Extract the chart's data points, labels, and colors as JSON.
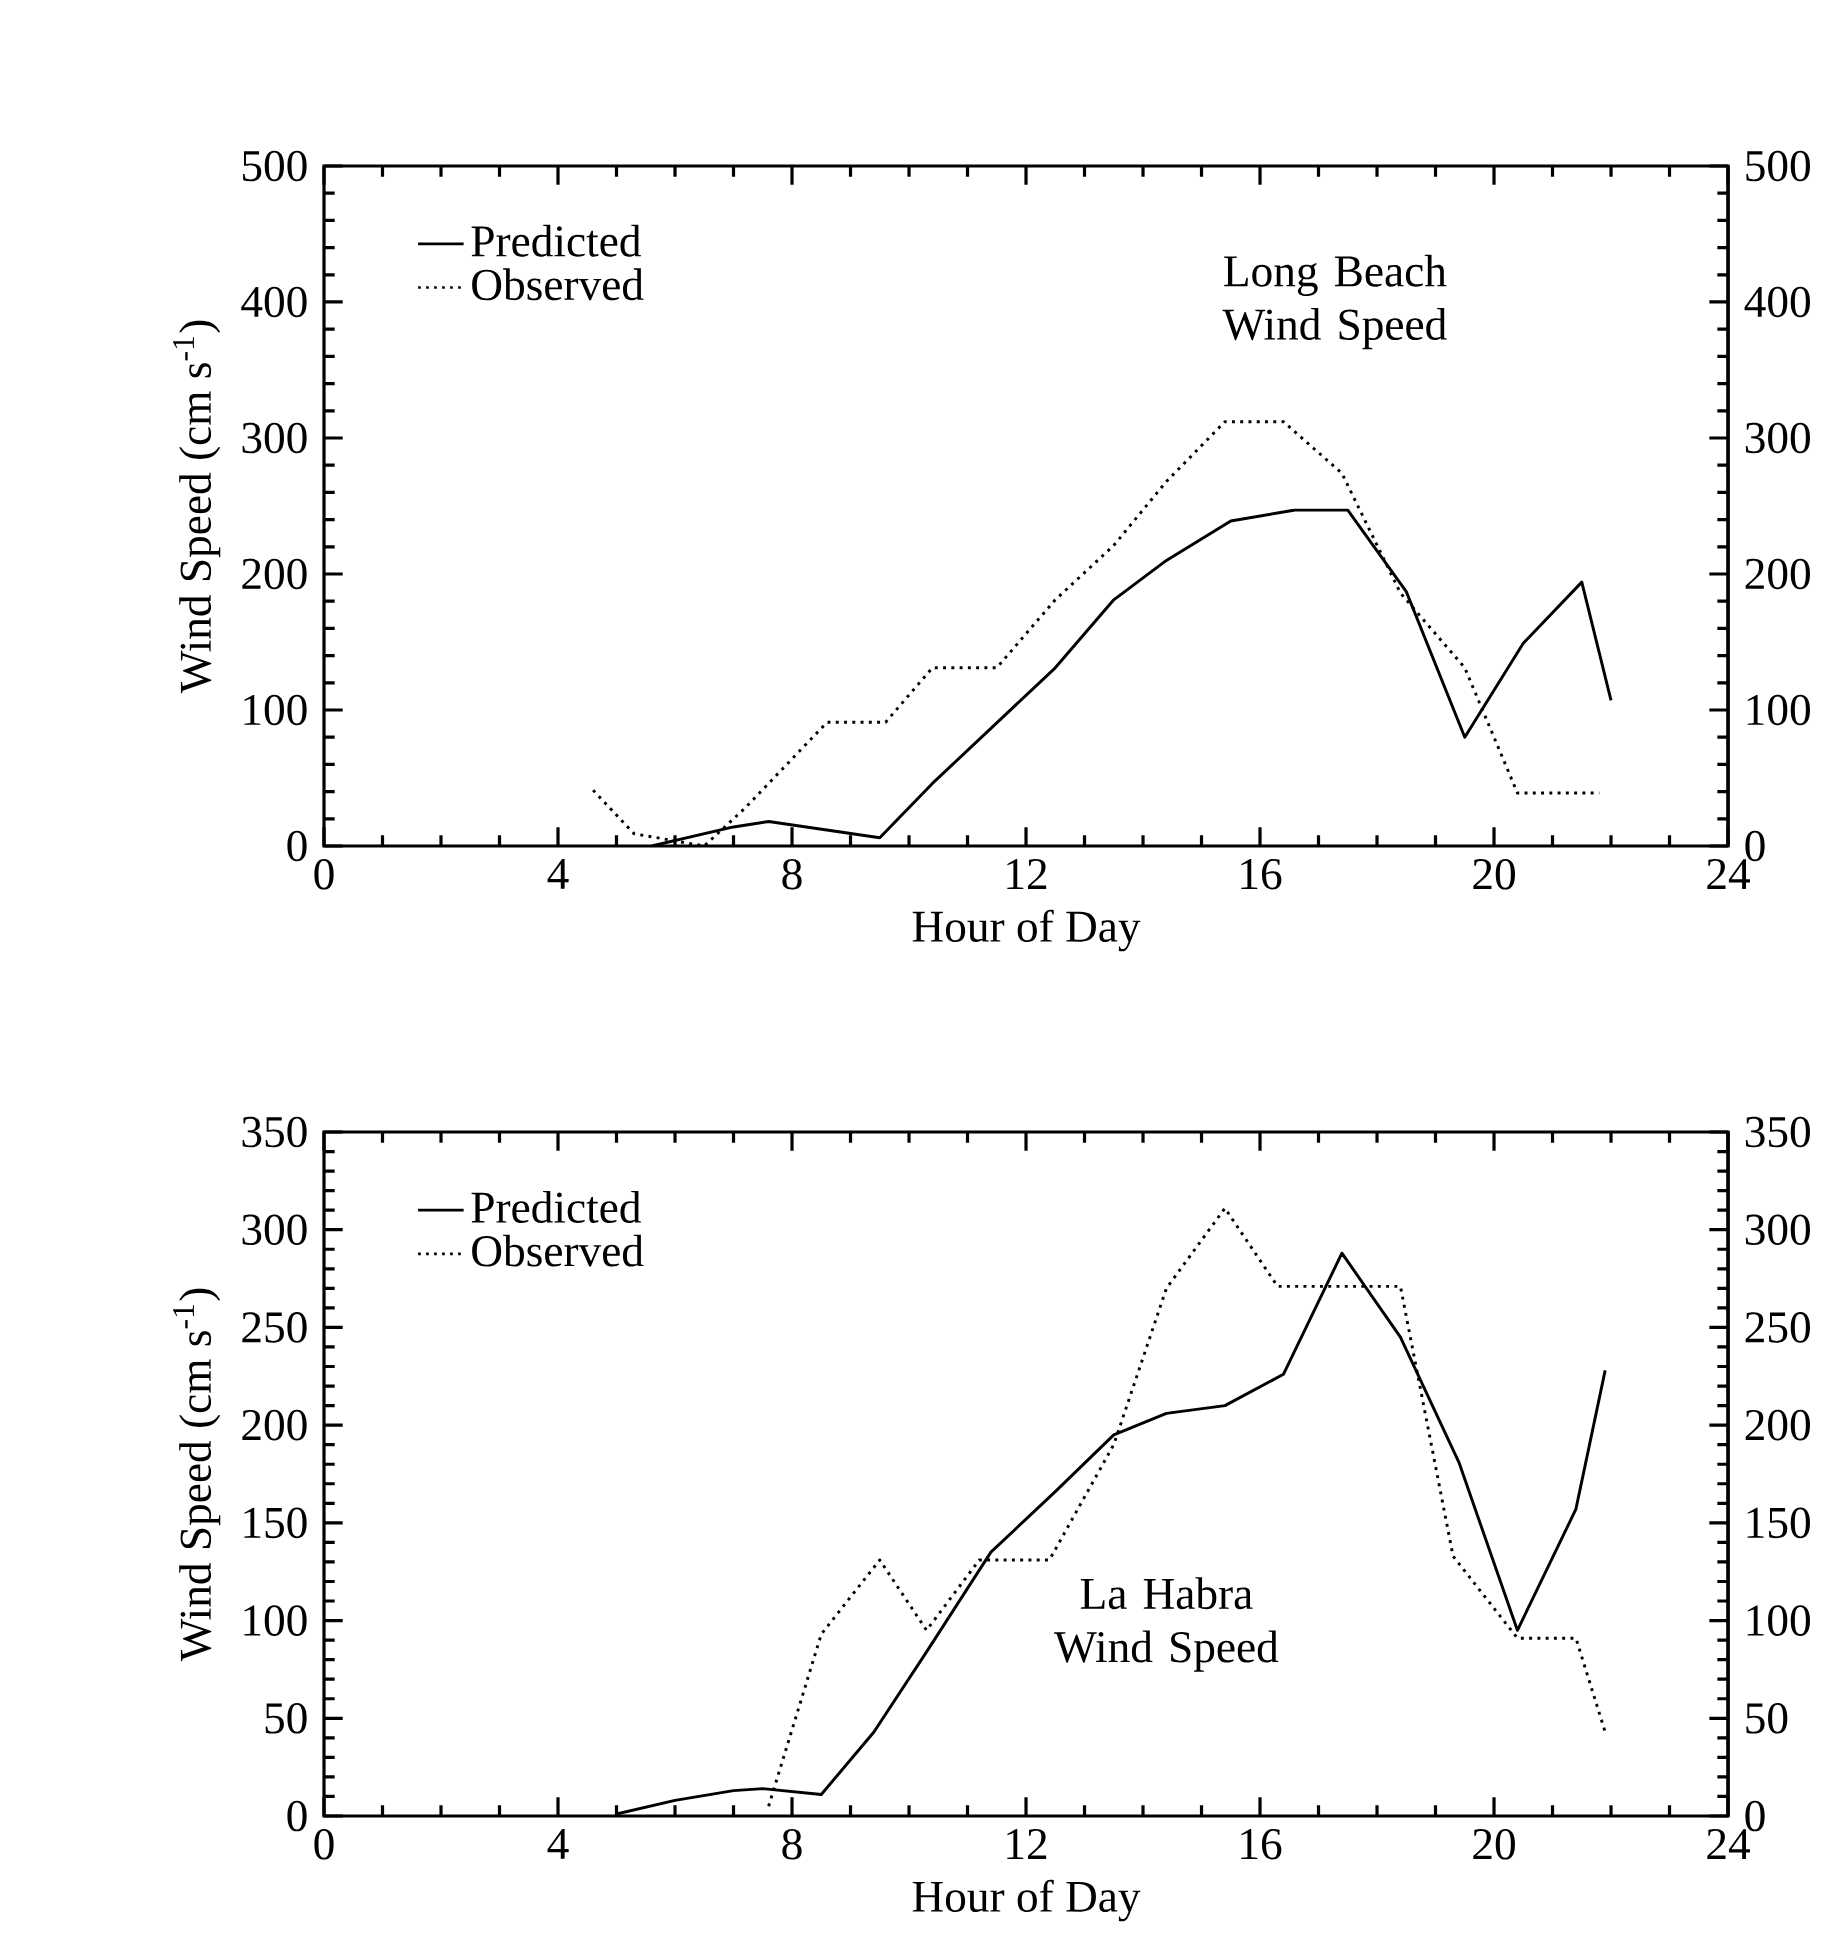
{
  "chart_data": [
    {
      "type": "line",
      "xlabel": "Hour of Day",
      "ylabel": "Wind Speed (cm s$^{-1}$)",
      "xlim": [
        0,
        24
      ],
      "xticks": [
        0,
        4,
        8,
        12,
        16,
        20,
        24
      ],
      "ylim": [
        0,
        500
      ],
      "yticks": [
        0,
        100,
        200,
        300,
        400,
        500
      ],
      "y2lim": [
        0,
        500
      ],
      "y2ticks": [
        0,
        100,
        200,
        300,
        400,
        500
      ],
      "legend": "top left",
      "annotations": [
        "Long Beach Wind Speed"
      ],
      "series": [
        {
          "name": "Predicted",
          "color": "#000000",
          "line_style": "solid",
          "x": [
            5.6,
            7.0,
            7.6,
            9.5,
            10.4,
            12.5,
            13.5,
            14.4,
            15.5,
            16.6,
            17.5,
            18.5,
            19.5,
            20.5,
            21.5,
            22.0
          ],
          "values": [
            0,
            14,
            18,
            6,
            46,
            131,
            181,
            210,
            239,
            247,
            247,
            187,
            80,
            149,
            194,
            107
          ]
        },
        {
          "name": "Observed",
          "color": "#000000",
          "line_style": "dotted",
          "x": [
            4.6,
            5.3,
            6.5,
            7.2,
            8.6,
            9.6,
            10.4,
            11.5,
            12.5,
            13.5,
            14.4,
            15.4,
            16.4,
            17.4,
            18.4,
            19.5,
            20.4,
            21.8
          ],
          "values": [
            41,
            9,
            0,
            28,
            91,
            91,
            131,
            131,
            181,
            221,
            268,
            312,
            312,
            274,
            186,
            131,
            39,
            39
          ]
        }
      ]
    },
    {
      "type": "line",
      "xlabel": "Hour of Day",
      "ylabel": "Wind Speed (cm s$^{-1}$)",
      "xlim": [
        0,
        24
      ],
      "xticks": [
        0,
        4,
        8,
        12,
        16,
        20,
        24
      ],
      "ylim": [
        0,
        350
      ],
      "yticks": [
        0,
        50,
        100,
        150,
        200,
        250,
        300,
        350
      ],
      "y2lim": [
        0,
        350
      ],
      "y2ticks": [
        0,
        50,
        100,
        150,
        200,
        250,
        300,
        350
      ],
      "legend": "top left",
      "annotations": [
        "La Habra Wind Speed"
      ],
      "series": [
        {
          "name": "Predicted",
          "color": "#000000",
          "line_style": "solid",
          "x": [
            5.0,
            6.0,
            7.0,
            7.5,
            8.5,
            9.4,
            10.3,
            11.4,
            12.5,
            13.5,
            14.4,
            15.4,
            16.4,
            17.4,
            18.4,
            19.4,
            20.4,
            21.4,
            21.9
          ],
          "values": [
            1,
            8,
            13,
            14,
            11,
            43,
            84,
            135,
            166,
            195,
            206,
            210,
            226,
            288,
            245,
            181,
            95,
            157,
            228
          ]
        },
        {
          "name": "Observed",
          "color": "#000000",
          "line_style": "dotted",
          "x": [
            7.6,
            8.5,
            9.5,
            10.3,
            11.2,
            12.4,
            13.5,
            14.4,
            15.4,
            16.3,
            18.4,
            19.3,
            20.4,
            21.4,
            21.9
          ],
          "values": [
            5,
            93,
            131,
            95,
            131,
            131,
            190,
            270,
            311,
            271,
            271,
            133,
            91,
            91,
            43
          ]
        }
      ]
    }
  ]
}
